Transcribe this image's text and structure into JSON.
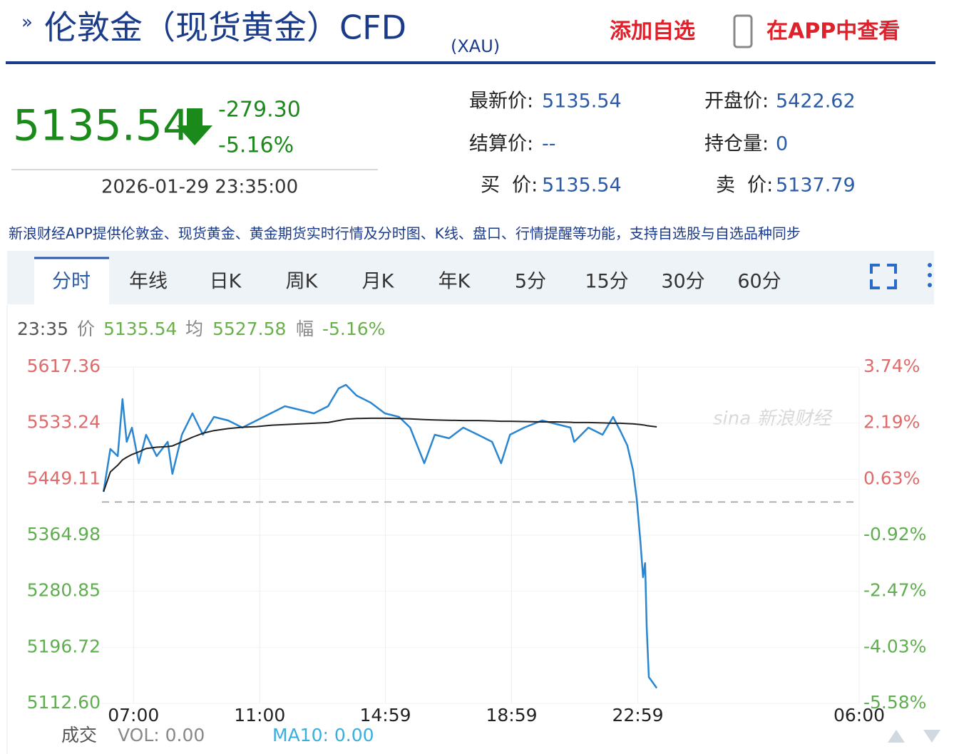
{
  "header": {
    "title": "伦敦金（现货黄金）CFD",
    "code": "(XAU)",
    "add_watchlist": "添加自选",
    "view_in_app": "在APP中查看"
  },
  "quote": {
    "price": "5135.54",
    "change": "-279.30",
    "change_pct": "-5.16%",
    "time": "2026-01-29 23:35:00"
  },
  "fields": [
    {
      "label": "最新价:",
      "value": "5135.54"
    },
    {
      "label": "开盘价:",
      "value": "5422.62"
    },
    {
      "label": "结算价:",
      "value": "--"
    },
    {
      "label": "持仓量:",
      "value": "0"
    },
    {
      "label": "买  价:",
      "value": "5135.54"
    },
    {
      "label": "卖  价:",
      "value": "5137.79"
    }
  ],
  "promo": "新浪财经APP提供伦敦金、现货黄金、黄金期货实时行情及分时图、K线、盘口、行情提醒等功能，支持自选股与自选品种同步",
  "tabs": [
    "分时",
    "年线",
    "日K",
    "周K",
    "月K",
    "年K",
    "5分",
    "15分",
    "30分",
    "60分"
  ],
  "info": {
    "time": "23:35",
    "price_label": "价",
    "price": "5135.54",
    "avg_label": "均",
    "avg": "5527.58",
    "range_label": "幅",
    "range": "-5.16%"
  },
  "watermark": "sina 新浪财经",
  "footer": {
    "label": "成交",
    "vol": "VOL: 0.00",
    "ma10": "MA10: 0.00"
  },
  "chart_data": {
    "type": "line",
    "baseline": 5414.84,
    "x": [
      "06:03",
      "06:16",
      "06:30",
      "06:39",
      "06:47",
      "06:57",
      "07:10",
      "07:24",
      "07:44",
      "08:05",
      "08:14",
      "08:32",
      "08:52",
      "09:12",
      "09:33",
      "10:00",
      "10:27",
      "10:54",
      "11:21",
      "11:48",
      "12:16",
      "12:43",
      "13:10",
      "13:30",
      "13:44",
      "14:04",
      "14:31",
      "14:58",
      "15:25",
      "15:46",
      "16:13",
      "16:33",
      "17:00",
      "17:27",
      "17:55",
      "18:22",
      "18:39",
      "18:56",
      "19:23",
      "19:57",
      "20:24",
      "20:51",
      "20:58",
      "21:25",
      "21:52",
      "22:12",
      "22:26",
      "22:39",
      "22:50",
      "22:57",
      "23:04",
      "23:09",
      "23:13",
      "23:16",
      "23:20",
      "23:35"
    ],
    "series": [
      {
        "name": "价",
        "color": "#2a86d0",
        "values": [
          5430.2,
          5494.4,
          5483.7,
          5569.2,
          5505.1,
          5526.5,
          5473.0,
          5515.8,
          5483.7,
          5505.1,
          5457.0,
          5515.8,
          5547.9,
          5515.8,
          5542.5,
          5537.2,
          5526.5,
          5537.2,
          5547.9,
          5558.5,
          5553.2,
          5547.9,
          5558.5,
          5585.3,
          5590.6,
          5574.6,
          5563.9,
          5547.9,
          5542.5,
          5526.5,
          5473.0,
          5515.8,
          5510.4,
          5526.5,
          5515.8,
          5505.1,
          5473.0,
          5515.8,
          5526.5,
          5537.2,
          5531.8,
          5526.5,
          5505.1,
          5526.5,
          5515.8,
          5542.5,
          5521.1,
          5499.7,
          5462.3,
          5419.5,
          5355.3,
          5301.9,
          5323.2,
          5227.0,
          5152.2,
          5135.54
        ]
      },
      {
        "name": "均",
        "color": "#222222",
        "values": [
          5430.2,
          5460.0,
          5470.0,
          5478.0,
          5482.0,
          5486.0,
          5490.0,
          5495.0,
          5497.0,
          5498.0,
          5499.0,
          5505.0,
          5512.0,
          5518.0,
          5522.0,
          5525.0,
          5527.0,
          5528.0,
          5530.0,
          5531.0,
          5532.0,
          5533.0,
          5534.0,
          5537.0,
          5539.0,
          5540.0,
          5540.5,
          5540.5,
          5540.0,
          5539.5,
          5538.5,
          5538.0,
          5537.5,
          5537.0,
          5537.0,
          5536.5,
          5536.0,
          5536.0,
          5535.5,
          5535.0,
          5535.0,
          5534.5,
          5534.0,
          5534.0,
          5533.5,
          5533.0,
          5533.0,
          5532.5,
          5532.0,
          5531.5,
          5531.0,
          5530.5,
          5530.0,
          5529.5,
          5529.0,
          5527.58
        ]
      }
    ],
    "xlim": [
      "06:00",
      "06:00"
    ],
    "xticks": [
      "07:00",
      "11:00",
      "14:59",
      "18:59",
      "22:59",
      "06:00"
    ],
    "ylim": [
      5112.6,
      5617.36
    ],
    "yticks": [
      5617.36,
      5533.24,
      5449.11,
      5364.98,
      5280.85,
      5196.72,
      {
        "value": 5112.6,
        "label": "5112.60"
      }
    ],
    "y2lim": [
      -5.58,
      3.74
    ],
    "y2ticks": [
      {
        "value": 3.74,
        "label": "3.74%"
      },
      {
        "value": 2.19,
        "label": "2.19%"
      },
      {
        "value": 0.63,
        "label": "0.63%"
      },
      {
        "value": -0.92,
        "label": "-0.92%"
      },
      {
        "value": -2.47,
        "label": "-2.47%"
      },
      {
        "value": -4.03,
        "label": "-4.03%"
      },
      {
        "value": -5.58,
        "label": "-5.58%"
      }
    ],
    "up_color": "#e06a6a",
    "down_color": "#5fae4f",
    "grid": true
  }
}
